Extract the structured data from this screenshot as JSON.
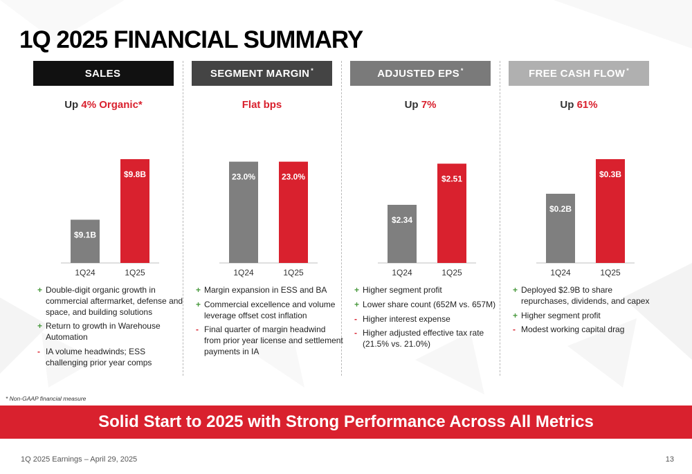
{
  "title": "1Q 2025 FINANCIAL SUMMARY",
  "colors": {
    "accent": "#d9212e",
    "prior_bar": "#7f7f7f",
    "plus": "#4a9a3f",
    "minus": "#d9212e"
  },
  "columns": [
    {
      "header": "SALES",
      "header_star": "",
      "header_color": "#111111",
      "sub_prefix": "Up ",
      "sub_highlight": "4% Organic*",
      "bullets": [
        {
          "mark": "+",
          "text": "Double-digit organic growth in commercial aftermarket, defense and space, and building solutions"
        },
        {
          "mark": "+",
          "text": "Return to growth in Warehouse Automation"
        },
        {
          "mark": "-",
          "text": "IA volume headwinds; ESS challenging prior year comps"
        }
      ]
    },
    {
      "header": "SEGMENT MARGIN",
      "header_star": "*",
      "header_color": "#444444",
      "sub_prefix": "",
      "sub_highlight": "Flat bps",
      "bullets": [
        {
          "mark": "+",
          "text": "Margin expansion in ESS and BA"
        },
        {
          "mark": "+",
          "text": "Commercial excellence and volume leverage offset cost inflation"
        },
        {
          "mark": "-",
          "text": "Final quarter of margin headwind from prior year license and settlement payments in IA"
        }
      ]
    },
    {
      "header": "ADJUSTED EPS",
      "header_star": "*",
      "header_color": "#7a7a7a",
      "sub_prefix": "Up ",
      "sub_highlight": "7%",
      "bullets": [
        {
          "mark": "+",
          "text": "Higher segment profit"
        },
        {
          "mark": "+",
          "text": "Lower share count (652M vs. 657M)"
        },
        {
          "mark": "-",
          "text": "Higher interest expense"
        },
        {
          "mark": "-",
          "text": "Higher adjusted effective tax rate (21.5% vs. 21.0%)"
        }
      ]
    },
    {
      "header": "FREE CASH FLOW",
      "header_star": "*",
      "header_color": "#b0b0b0",
      "sub_prefix": "Up ",
      "sub_highlight": "61%",
      "bullets": [
        {
          "mark": "+",
          "text": "Deployed $2.9B to share repurchases, dividends, and capex"
        },
        {
          "mark": "+",
          "text": "Higher segment profit"
        },
        {
          "mark": "-",
          "text": "Modest working capital drag"
        }
      ]
    }
  ],
  "chart_data": [
    {
      "type": "bar",
      "title": "SALES",
      "categories": [
        "1Q24",
        "1Q25"
      ],
      "values": [
        9.1,
        9.8
      ],
      "labels": [
        "$9.1B",
        "$9.8B"
      ],
      "unit": "$B",
      "colors": [
        "#7f7f7f",
        "#d9212e"
      ]
    },
    {
      "type": "bar",
      "title": "SEGMENT MARGIN",
      "categories": [
        "1Q24",
        "1Q25"
      ],
      "values": [
        23.0,
        23.0
      ],
      "labels": [
        "23.0%",
        "23.0%"
      ],
      "unit": "%",
      "colors": [
        "#7f7f7f",
        "#d9212e"
      ]
    },
    {
      "type": "bar",
      "title": "ADJUSTED EPS",
      "categories": [
        "1Q24",
        "1Q25"
      ],
      "values": [
        2.34,
        2.51
      ],
      "labels": [
        "$2.34",
        "$2.51"
      ],
      "unit": "$",
      "colors": [
        "#7f7f7f",
        "#d9212e"
      ]
    },
    {
      "type": "bar",
      "title": "FREE CASH FLOW",
      "categories": [
        "1Q24",
        "1Q25"
      ],
      "values": [
        0.2,
        0.3
      ],
      "labels": [
        "$0.2B",
        "$0.3B"
      ],
      "unit": "$B",
      "colors": [
        "#7f7f7f",
        "#d9212e"
      ]
    }
  ],
  "footnote": "* Non-GAAP financial measure",
  "banner": "Solid Start to 2025 with Strong Performance Across All Metrics",
  "footer_left": "1Q 2025 Earnings – April 29, 2025",
  "page_number": "13"
}
